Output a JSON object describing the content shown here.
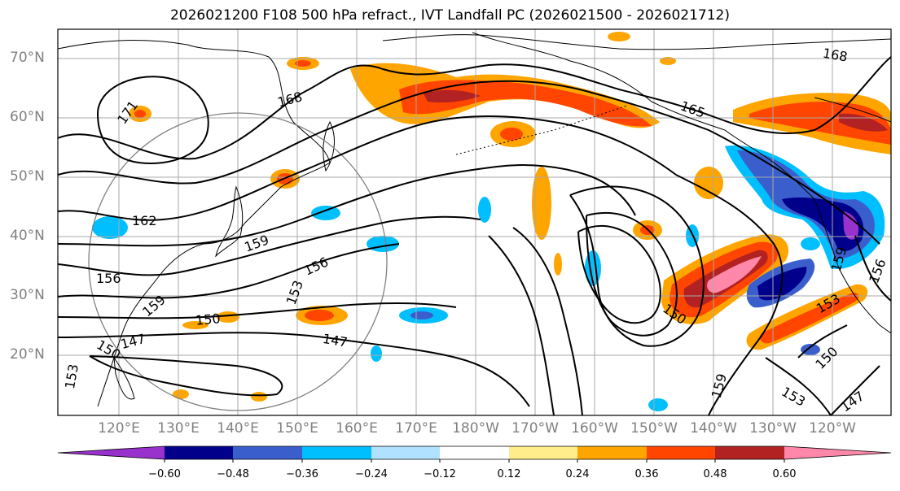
{
  "title": "2026021200 F108 500 hPa refract., IVT Landfall PC (2026021500 - 2026021712)",
  "lat_labels": [
    "70°N",
    "60°N",
    "50°N",
    "40°N",
    "30°N",
    "20°N"
  ],
  "lon_labels": [
    "120°E",
    "130°E",
    "140°E",
    "150°E",
    "160°E",
    "170°E",
    "180°W",
    "170°W",
    "160°W",
    "150°W",
    "140°W",
    "130°W",
    "120°W"
  ],
  "colorbar": {
    "ticks": [
      "−0.60",
      "−0.48",
      "−0.36",
      "−0.24",
      "−0.12",
      "0.12",
      "0.24",
      "0.36",
      "0.48",
      "0.60"
    ],
    "colors": [
      "#9932cc",
      "#00008b",
      "#3a5fcd",
      "#00bfff",
      "#b0e2ff",
      "#ffffff",
      "#ffec8b",
      "#ffa500",
      "#ff4500",
      "#b22222",
      "#ff88aa"
    ]
  },
  "contour_labels": [
    "171",
    "168",
    "168",
    "165",
    "162",
    "159",
    "156",
    "156",
    "159",
    "153",
    "150",
    "147",
    "147",
    "150",
    "150",
    "153",
    "156",
    "159",
    "159",
    "153",
    "150",
    "153",
    "147"
  ]
}
